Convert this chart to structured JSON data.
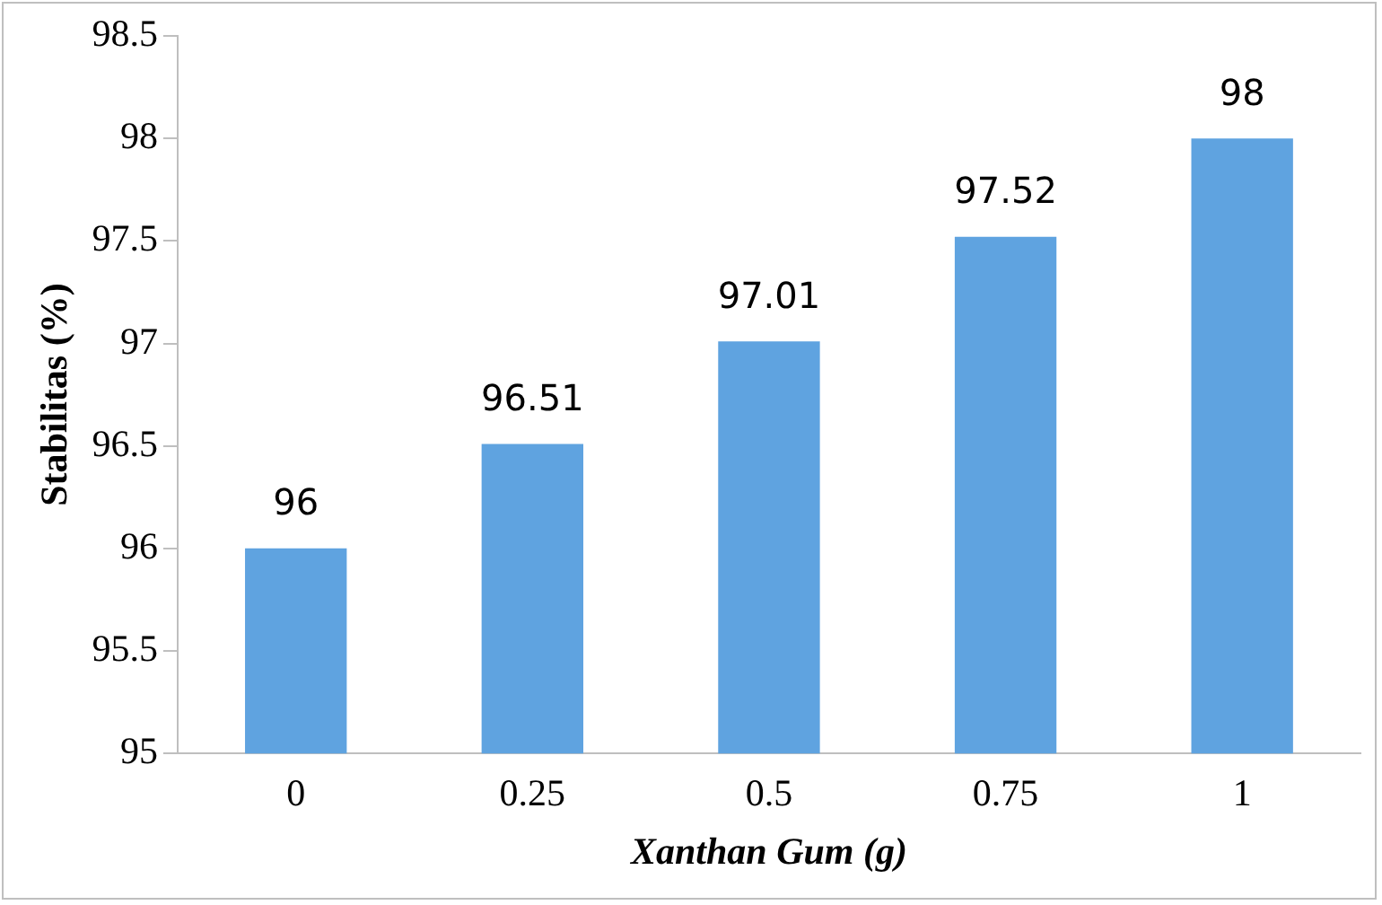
{
  "chart_data": {
    "type": "bar",
    "xlabel": "Xanthan Gum (g)",
    "ylabel": "Stabilitas (%)",
    "categories": [
      "0",
      "0.25",
      "0.5",
      "0.75",
      "1"
    ],
    "values": [
      96,
      96.51,
      97.01,
      97.52,
      98
    ],
    "color": "#5fa3e0",
    "ylim": [
      95,
      98.5
    ],
    "yticks": [
      95,
      95.5,
      96,
      96.5,
      97,
      97.5,
      98,
      98.5
    ],
    "grid": false,
    "legend": false,
    "data_labels": true
  }
}
